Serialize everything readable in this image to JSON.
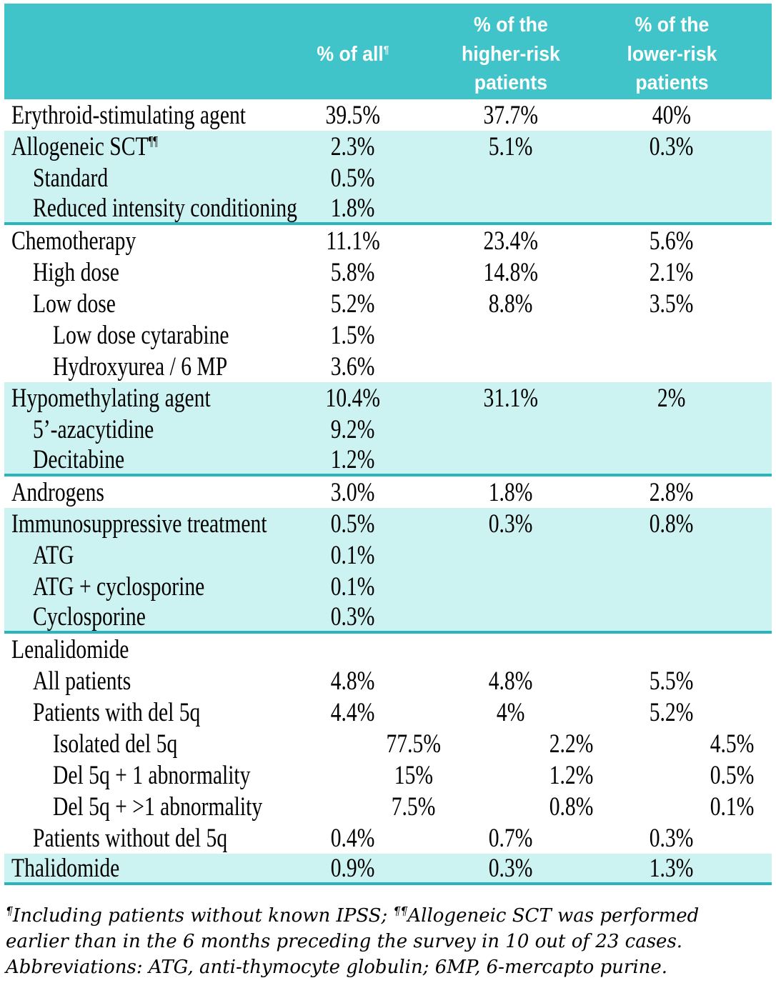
{
  "colors": {
    "header_teal": "#41c4c9",
    "row_teal": "#cdf2f2",
    "divider_teal": "#2ab4bc",
    "text_black": "#000000",
    "header_text": "#ffffff"
  },
  "table": {
    "header": {
      "col_label": "",
      "col_all": "% of all",
      "col_all_sup": "¶",
      "col_higher": "% of the\nhigher-risk\npatients",
      "col_lower": "% of the\nlower-risk\npatients"
    },
    "rows": [
      {
        "label": "Erythroid-stimulating agent",
        "indent": 0,
        "bg": "white",
        "values": [
          "39.5%",
          "37.7%",
          "40%"
        ]
      },
      {
        "label": "Allogeneic SCT",
        "sup": "¶¶",
        "indent": 0,
        "bg": "teal",
        "values": [
          "2.3%",
          "5.1%",
          "0.3%"
        ]
      },
      {
        "label": "Standard",
        "indent": 1,
        "bg": "teal",
        "values": [
          "0.5%",
          "",
          ""
        ]
      },
      {
        "label": "Reduced intensity conditioning",
        "indent": 1,
        "bg": "teal",
        "divider": true,
        "values": [
          "1.8%",
          "",
          ""
        ]
      },
      {
        "label": "Chemotherapy",
        "indent": 0,
        "bg": "white",
        "values": [
          "11.1%",
          "23.4%",
          "5.6%"
        ]
      },
      {
        "label": "High dose",
        "indent": 1,
        "bg": "white",
        "values": [
          "5.8%",
          "14.8%",
          "2.1%"
        ]
      },
      {
        "label": "Low dose",
        "indent": 1,
        "bg": "white",
        "values": [
          "5.2%",
          "8.8%",
          "3.5%"
        ]
      },
      {
        "label": "Low dose cytarabine",
        "indent": 2,
        "bg": "white",
        "values": [
          "1.5%",
          "",
          ""
        ]
      },
      {
        "label": "Hydroxyurea / 6 MP",
        "indent": 2,
        "bg": "white",
        "values": [
          "3.6%",
          "",
          ""
        ]
      },
      {
        "label": "Hypomethylating agent",
        "indent": 0,
        "bg": "teal",
        "values": [
          "10.4%",
          "31.1%",
          "2%"
        ]
      },
      {
        "label": "5’-azacytidine",
        "indent": 1,
        "bg": "teal",
        "values": [
          "9.2%",
          "",
          ""
        ]
      },
      {
        "label": "Decitabine",
        "indent": 1,
        "bg": "teal",
        "divider": true,
        "values": [
          "1.2%",
          "",
          ""
        ]
      },
      {
        "label": "Androgens",
        "indent": 0,
        "bg": "white",
        "values": [
          "3.0%",
          "1.8%",
          "2.8%"
        ]
      },
      {
        "label": "Immunosuppressive treatment",
        "indent": 0,
        "bg": "teal",
        "values": [
          "0.5%",
          "0.3%",
          "0.8%"
        ]
      },
      {
        "label": "ATG",
        "indent": 1,
        "bg": "teal",
        "values": [
          "0.1%",
          "",
          ""
        ]
      },
      {
        "label": "ATG + cyclosporine",
        "indent": 1,
        "bg": "teal",
        "values": [
          "0.1%",
          "",
          ""
        ]
      },
      {
        "label": "Cyclosporine",
        "indent": 1,
        "bg": "teal",
        "divider": true,
        "values": [
          "0.3%",
          "",
          ""
        ]
      },
      {
        "label": "Lenalidomide",
        "indent": 0,
        "bg": "white",
        "values": [
          "",
          "",
          ""
        ]
      },
      {
        "label": "All patients",
        "indent": 1,
        "bg": "white",
        "values": [
          "4.8%",
          "4.8%",
          "5.5%"
        ]
      },
      {
        "label": "Patients with del 5q",
        "indent": 1,
        "bg": "white",
        "values": [
          "4.4%",
          "4%",
          "5.2%"
        ]
      },
      {
        "label": "Isolated del 5q",
        "indent": 2,
        "bg": "white",
        "shifted": true,
        "values": [
          "77.5%",
          "2.2%",
          "4.5%"
        ]
      },
      {
        "label": "Del 5q + 1 abnormality",
        "indent": 2,
        "bg": "white",
        "shifted": true,
        "values": [
          "15%",
          "1.2%",
          "0.5%"
        ]
      },
      {
        "label": "Del 5q + >1 abnormality",
        "indent": 2,
        "bg": "white",
        "shifted": true,
        "values": [
          "7.5%",
          "0.8%",
          "0.1%"
        ]
      },
      {
        "label": "Patients without del 5q",
        "indent": 1,
        "bg": "white",
        "values": [
          "0.4%",
          "0.7%",
          "0.3%"
        ]
      },
      {
        "label": "Thalidomide",
        "indent": 0,
        "bg": "teal",
        "divider": true,
        "values": [
          "0.9%",
          "0.3%",
          "1.3%"
        ]
      }
    ]
  },
  "footnote": {
    "parts": [
      {
        "sup": "¶"
      },
      {
        "text": "Including patients without known IPSS; "
      },
      {
        "sup": "¶¶"
      },
      {
        "text": "Allogeneic SCT was performed earlier than in the 6 months preceding the survey in 10 out of 23 cases. Abbreviations: ATG, anti-thymocyte globulin; 6MP, 6-mercapto purine."
      }
    ]
  }
}
